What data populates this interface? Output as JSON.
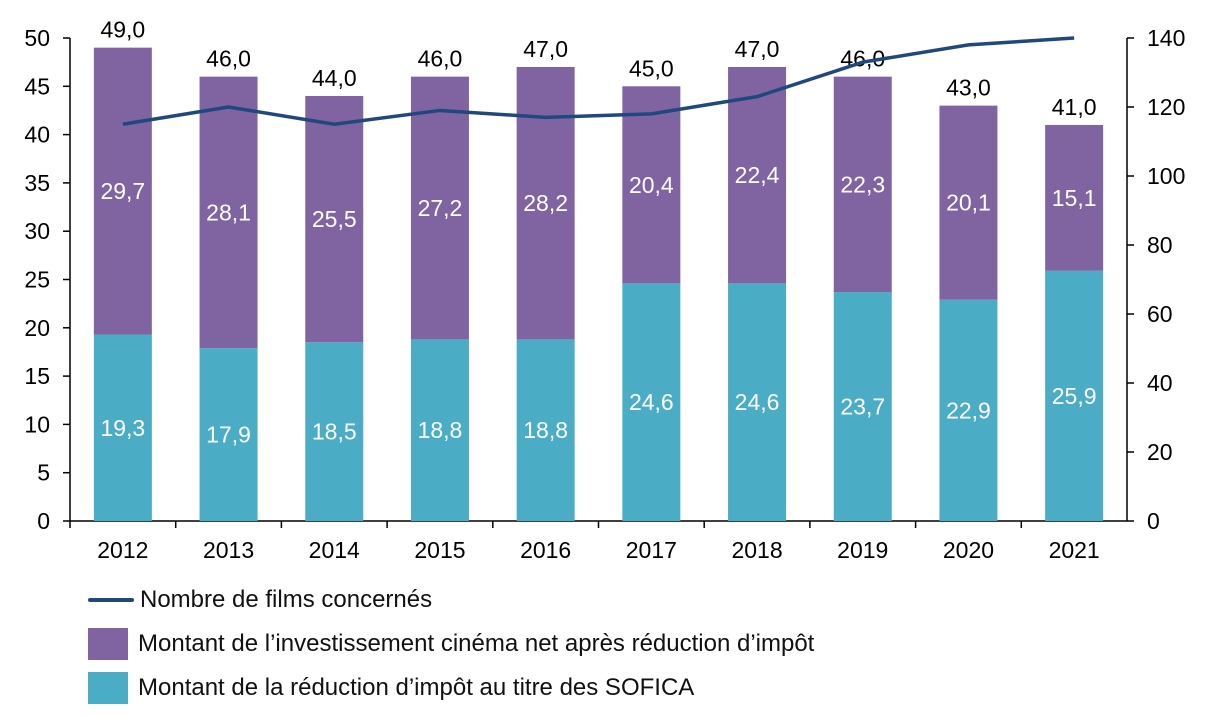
{
  "chart_data": {
    "type": "bar",
    "stacked": true,
    "categories": [
      "2012",
      "2013",
      "2014",
      "2015",
      "2016",
      "2017",
      "2018",
      "2019",
      "2020",
      "2021"
    ],
    "series": [
      {
        "name": "Montant de la réduction d’impôt au titre des SOFICA",
        "kind": "bar",
        "color": "#4BACC6",
        "values": [
          19.3,
          17.9,
          18.5,
          18.8,
          18.8,
          24.6,
          24.6,
          23.7,
          22.9,
          25.9
        ],
        "labels": [
          "19,3",
          "17,9",
          "18,5",
          "18,8",
          "18,8",
          "24,6",
          "24,6",
          "23,7",
          "22,9",
          "25,9"
        ]
      },
      {
        "name": "Montant de l’investissement cinéma net après réduction d’impôt",
        "kind": "bar",
        "color": "#8064A2",
        "values": [
          29.7,
          28.1,
          25.5,
          27.2,
          28.2,
          20.4,
          22.4,
          22.3,
          20.1,
          15.1
        ],
        "labels": [
          "29,7",
          "28,1",
          "25,5",
          "27,2",
          "28,2",
          "20,4",
          "22,4",
          "22,3",
          "20,1",
          "15,1"
        ]
      },
      {
        "name": "Nombre de films concernés",
        "kind": "line",
        "axis": "right",
        "color": "#1F497D",
        "values": [
          115,
          120,
          115,
          119,
          117,
          118,
          123,
          133,
          138,
          140
        ]
      }
    ],
    "totals": [
      49.0,
      46.0,
      44.0,
      46.0,
      47.0,
      45.0,
      47.0,
      46.0,
      43.0,
      41.0
    ],
    "total_labels": [
      "49,0",
      "46,0",
      "44,0",
      "46,0",
      "47,0",
      "45,0",
      "47,0",
      "46,0",
      "43,0",
      "41,0"
    ],
    "ylim": [
      0,
      50
    ],
    "yticks": [
      "0",
      "5",
      "10",
      "15",
      "20",
      "25",
      "30",
      "35",
      "40",
      "45",
      "50"
    ],
    "y2lim": [
      0,
      140
    ],
    "y2ticks": [
      "0",
      "20",
      "40",
      "60",
      "80",
      "100",
      "120",
      "140"
    ],
    "grid": false,
    "legend_position": "bottom"
  },
  "legend": {
    "items": [
      {
        "label": "Nombre de films concernés",
        "shape": "line",
        "color": "#1F497D"
      },
      {
        "label": "Montant de l’investissement cinéma net après réduction d’impôt",
        "shape": "box",
        "color": "#8064A2"
      },
      {
        "label": "Montant de la réduction d’impôt au titre des SOFICA",
        "shape": "box",
        "color": "#4BACC6"
      }
    ]
  }
}
